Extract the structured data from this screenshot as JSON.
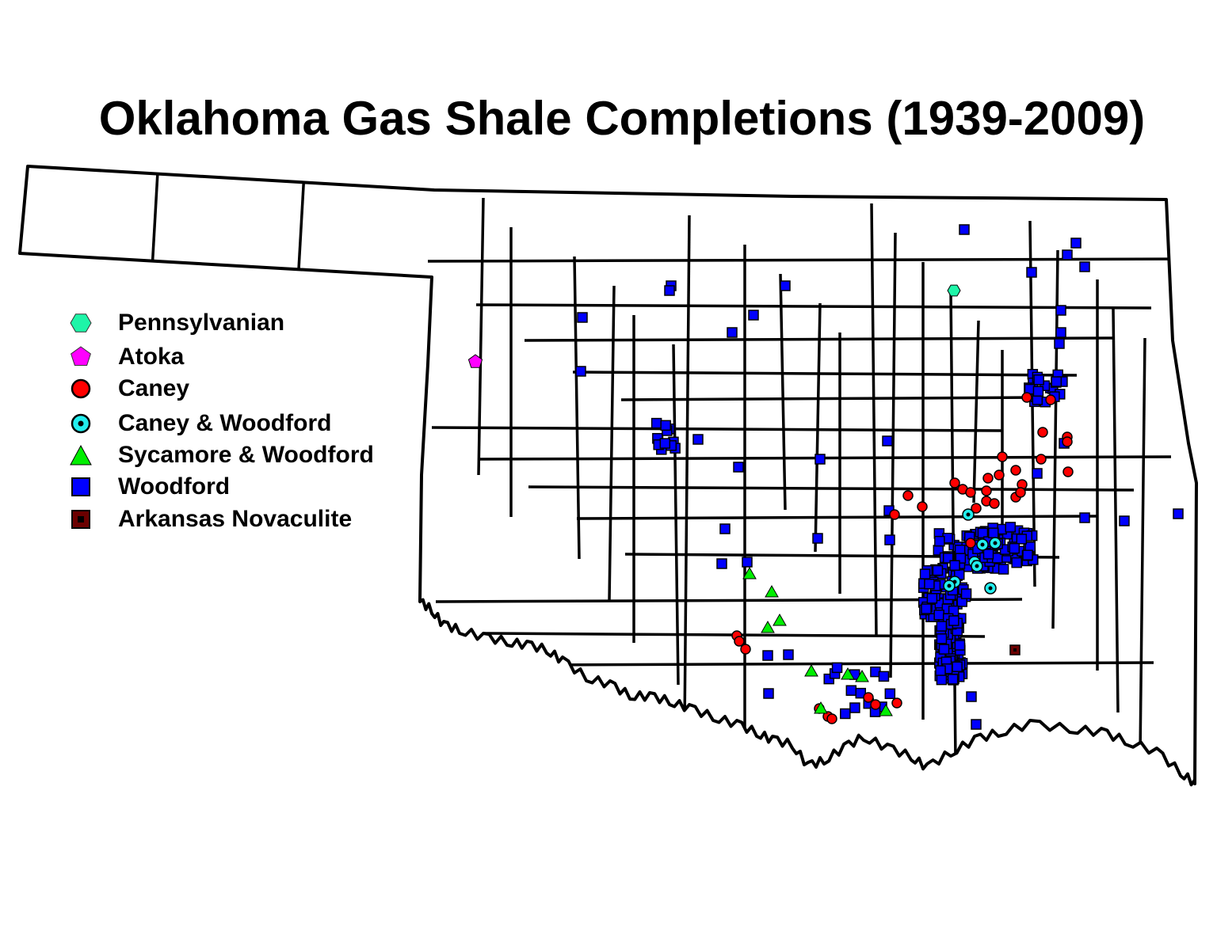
{
  "title": "Oklahoma Gas Shale Completions (1939-2009)",
  "legend": [
    {
      "label": "Pennsylvanian",
      "symbol": "hexagon",
      "color": "#1EF5A8"
    },
    {
      "label": "Atoka",
      "symbol": "pentagon",
      "color": "#FF00FF"
    },
    {
      "label": "Caney",
      "symbol": "circle",
      "color": "#FF0000"
    },
    {
      "label": "Caney & Woodford",
      "symbol": "circle-dot",
      "color": "#22EEEE"
    },
    {
      "label": "Sycamore & Woodford",
      "symbol": "triangle",
      "color": "#00EE00"
    },
    {
      "label": "Woodford",
      "symbol": "square",
      "color": "#0000FF"
    },
    {
      "label": "Arkansas Novaculite",
      "symbol": "square-dot",
      "color": "#6B0000"
    }
  ],
  "map": {
    "region": "Oklahoma",
    "boundaries": "counties",
    "outline_color": "#000000"
  }
}
